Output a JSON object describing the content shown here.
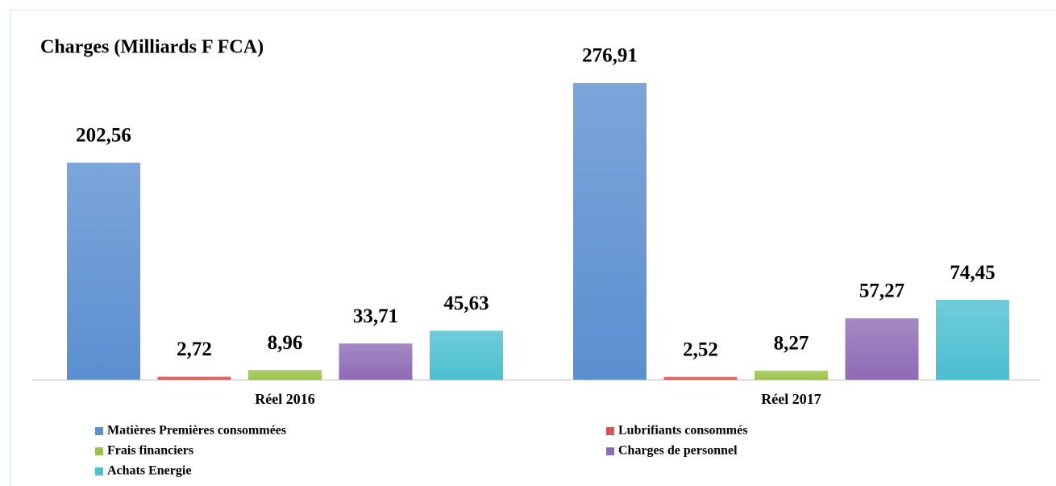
{
  "chart_data": {
    "type": "bar",
    "title": "Charges (Milliards F FCA)",
    "categories": [
      "Réel 2016",
      "Réel 2017"
    ],
    "series": [
      {
        "name": "Matières Premières consommées",
        "color": "#5b8fd0",
        "values": [
          202.56,
          276.91
        ],
        "value_labels": [
          "202,56",
          "276,91"
        ]
      },
      {
        "name": "Lubrifiants consommés",
        "color": "#d9534f",
        "values": [
          2.72,
          2.52
        ],
        "value_labels": [
          "2,72",
          "2,52"
        ]
      },
      {
        "name": "Frais financiers",
        "color": "#9bc34a",
        "values": [
          8.96,
          8.27
        ],
        "value_labels": [
          "8,96",
          "8,27"
        ]
      },
      {
        "name": "Charges de personnel",
        "color": "#8e6bb5",
        "values": [
          33.71,
          57.27
        ],
        "value_labels": [
          "33,71",
          "57,27"
        ]
      },
      {
        "name": "Achats Energie",
        "color": "#4bbfd0",
        "values": [
          45.63,
          74.45
        ],
        "value_labels": [
          "45,63",
          "74,45"
        ]
      }
    ]
  }
}
